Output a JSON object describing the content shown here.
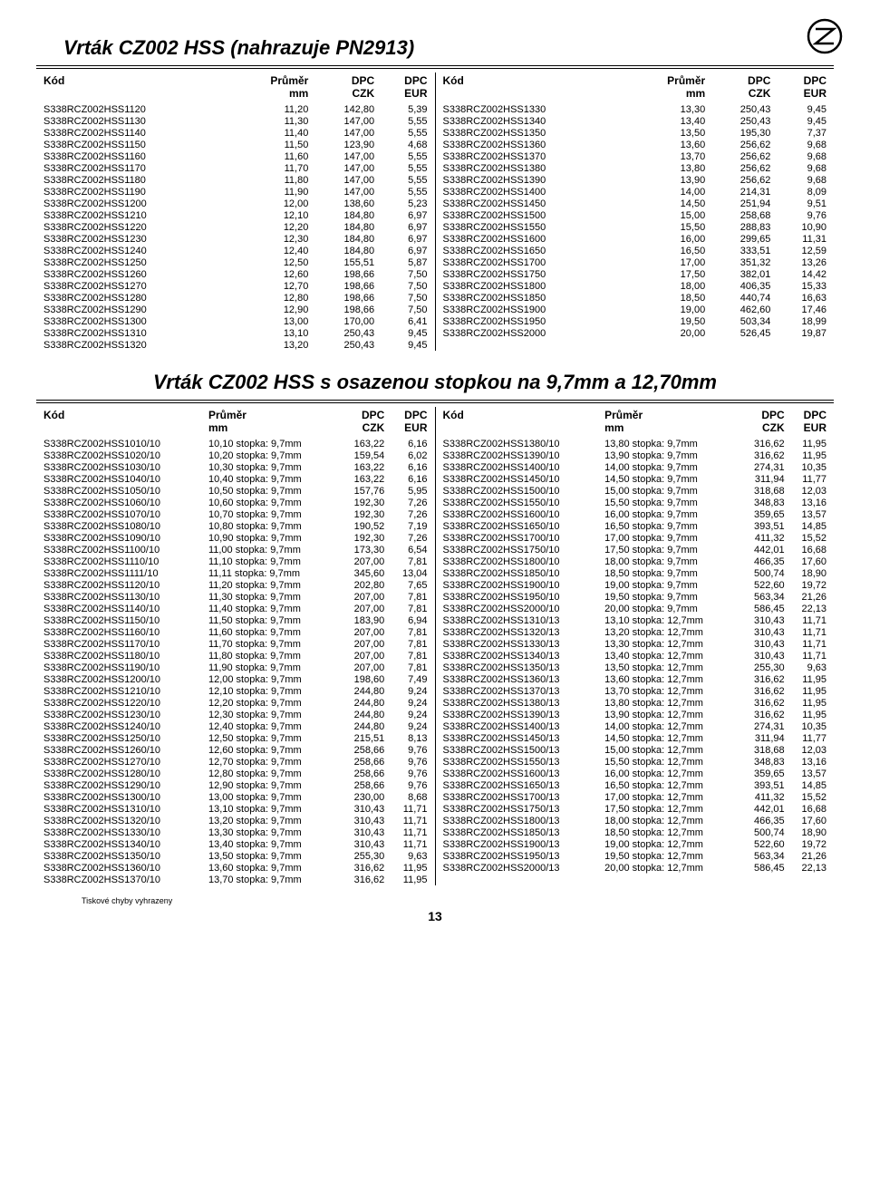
{
  "page_number": "13",
  "footnote": "Tiskové chyby vyhrazeny",
  "section1": {
    "title": "Vrták CZ002 HSS (nahrazuje PN2913)",
    "headers": [
      "Kód",
      "Průměr",
      "DPC",
      "DPC"
    ],
    "subheaders": [
      "",
      "mm",
      "CZK",
      "EUR"
    ],
    "left": [
      [
        "S338RCZ002HSS1120",
        "11,20",
        "142,80",
        "5,39"
      ],
      [
        "S338RCZ002HSS1130",
        "11,30",
        "147,00",
        "5,55"
      ],
      [
        "S338RCZ002HSS1140",
        "11,40",
        "147,00",
        "5,55"
      ],
      [
        "S338RCZ002HSS1150",
        "11,50",
        "123,90",
        "4,68"
      ],
      [
        "S338RCZ002HSS1160",
        "11,60",
        "147,00",
        "5,55"
      ],
      [
        "S338RCZ002HSS1170",
        "11,70",
        "147,00",
        "5,55"
      ],
      [
        "S338RCZ002HSS1180",
        "11,80",
        "147,00",
        "5,55"
      ],
      [
        "S338RCZ002HSS1190",
        "11,90",
        "147,00",
        "5,55"
      ],
      [
        "S338RCZ002HSS1200",
        "12,00",
        "138,60",
        "5,23"
      ],
      [
        "S338RCZ002HSS1210",
        "12,10",
        "184,80",
        "6,97"
      ],
      [
        "S338RCZ002HSS1220",
        "12,20",
        "184,80",
        "6,97"
      ],
      [
        "S338RCZ002HSS1230",
        "12,30",
        "184,80",
        "6,97"
      ],
      [
        "S338RCZ002HSS1240",
        "12,40",
        "184,80",
        "6,97"
      ],
      [
        "S338RCZ002HSS1250",
        "12,50",
        "155,51",
        "5,87"
      ],
      [
        "S338RCZ002HSS1260",
        "12,60",
        "198,66",
        "7,50"
      ],
      [
        "S338RCZ002HSS1270",
        "12,70",
        "198,66",
        "7,50"
      ],
      [
        "S338RCZ002HSS1280",
        "12,80",
        "198,66",
        "7,50"
      ],
      [
        "S338RCZ002HSS1290",
        "12,90",
        "198,66",
        "7,50"
      ],
      [
        "S338RCZ002HSS1300",
        "13,00",
        "170,00",
        "6,41"
      ],
      [
        "S338RCZ002HSS1310",
        "13,10",
        "250,43",
        "9,45"
      ],
      [
        "S338RCZ002HSS1320",
        "13,20",
        "250,43",
        "9,45"
      ]
    ],
    "right": [
      [
        "S338RCZ002HSS1330",
        "13,30",
        "250,43",
        "9,45"
      ],
      [
        "S338RCZ002HSS1340",
        "13,40",
        "250,43",
        "9,45"
      ],
      [
        "S338RCZ002HSS1350",
        "13,50",
        "195,30",
        "7,37"
      ],
      [
        "S338RCZ002HSS1360",
        "13,60",
        "256,62",
        "9,68"
      ],
      [
        "S338RCZ002HSS1370",
        "13,70",
        "256,62",
        "9,68"
      ],
      [
        "S338RCZ002HSS1380",
        "13,80",
        "256,62",
        "9,68"
      ],
      [
        "S338RCZ002HSS1390",
        "13,90",
        "256,62",
        "9,68"
      ],
      [
        "S338RCZ002HSS1400",
        "14,00",
        "214,31",
        "8,09"
      ],
      [
        "S338RCZ002HSS1450",
        "14,50",
        "251,94",
        "9,51"
      ],
      [
        "S338RCZ002HSS1500",
        "15,00",
        "258,68",
        "9,76"
      ],
      [
        "S338RCZ002HSS1550",
        "15,50",
        "288,83",
        "10,90"
      ],
      [
        "S338RCZ002HSS1600",
        "16,00",
        "299,65",
        "11,31"
      ],
      [
        "S338RCZ002HSS1650",
        "16,50",
        "333,51",
        "12,59"
      ],
      [
        "S338RCZ002HSS1700",
        "17,00",
        "351,32",
        "13,26"
      ],
      [
        "S338RCZ002HSS1750",
        "17,50",
        "382,01",
        "14,42"
      ],
      [
        "S338RCZ002HSS1800",
        "18,00",
        "406,35",
        "15,33"
      ],
      [
        "S338RCZ002HSS1850",
        "18,50",
        "440,74",
        "16,63"
      ],
      [
        "S338RCZ002HSS1900",
        "19,00",
        "462,60",
        "17,46"
      ],
      [
        "S338RCZ002HSS1950",
        "19,50",
        "503,34",
        "18,99"
      ],
      [
        "S338RCZ002HSS2000",
        "20,00",
        "526,45",
        "19,87"
      ]
    ]
  },
  "section2": {
    "title": "Vrták CZ002 HSS s osazenou stopkou na 9,7mm a 12,70mm",
    "headers": [
      "Kód",
      "Průměr",
      "DPC",
      "DPC"
    ],
    "subheaders": [
      "",
      "mm",
      "CZK",
      "EUR"
    ],
    "left": [
      [
        "S338RCZ002HSS1010/10",
        "10,10 stopka:  9,7mm",
        "163,22",
        "6,16"
      ],
      [
        "S338RCZ002HSS1020/10",
        "10,20 stopka:  9,7mm",
        "159,54",
        "6,02"
      ],
      [
        "S338RCZ002HSS1030/10",
        "10,30 stopka:  9,7mm",
        "163,22",
        "6,16"
      ],
      [
        "S338RCZ002HSS1040/10",
        "10,40 stopka:  9,7mm",
        "163,22",
        "6,16"
      ],
      [
        "S338RCZ002HSS1050/10",
        "10,50 stopka:  9,7mm",
        "157,76",
        "5,95"
      ],
      [
        "S338RCZ002HSS1060/10",
        "10,60 stopka:  9,7mm",
        "192,30",
        "7,26"
      ],
      [
        "S338RCZ002HSS1070/10",
        "10,70 stopka:  9,7mm",
        "192,30",
        "7,26"
      ],
      [
        "S338RCZ002HSS1080/10",
        "10,80 stopka:  9,7mm",
        "190,52",
        "7,19"
      ],
      [
        "S338RCZ002HSS1090/10",
        "10,90 stopka:  9,7mm",
        "192,30",
        "7,26"
      ],
      [
        "S338RCZ002HSS1100/10",
        "11,00 stopka:  9,7mm",
        "173,30",
        "6,54"
      ],
      [
        "S338RCZ002HSS1110/10",
        "11,10 stopka:  9,7mm",
        "207,00",
        "7,81"
      ],
      [
        "S338RCZ002HSS1111/10",
        "11,11 stopka:  9,7mm",
        "345,60",
        "13,04"
      ],
      [
        "S338RCZ002HSS1120/10",
        "11,20 stopka:  9,7mm",
        "202,80",
        "7,65"
      ],
      [
        "S338RCZ002HSS1130/10",
        "11,30 stopka:  9,7mm",
        "207,00",
        "7,81"
      ],
      [
        "S338RCZ002HSS1140/10",
        "11,40 stopka:  9,7mm",
        "207,00",
        "7,81"
      ],
      [
        "S338RCZ002HSS1150/10",
        "11,50 stopka:  9,7mm",
        "183,90",
        "6,94"
      ],
      [
        "S338RCZ002HSS1160/10",
        "11,60 stopka:  9,7mm",
        "207,00",
        "7,81"
      ],
      [
        "S338RCZ002HSS1170/10",
        "11,70 stopka:  9,7mm",
        "207,00",
        "7,81"
      ],
      [
        "S338RCZ002HSS1180/10",
        "11,80 stopka:  9,7mm",
        "207,00",
        "7,81"
      ],
      [
        "S338RCZ002HSS1190/10",
        "11,90 stopka:  9,7mm",
        "207,00",
        "7,81"
      ],
      [
        "S338RCZ002HSS1200/10",
        "12,00 stopka:  9,7mm",
        "198,60",
        "7,49"
      ],
      [
        "S338RCZ002HSS1210/10",
        "12,10 stopka:  9,7mm",
        "244,80",
        "9,24"
      ],
      [
        "S338RCZ002HSS1220/10",
        "12,20 stopka:  9,7mm",
        "244,80",
        "9,24"
      ],
      [
        "S338RCZ002HSS1230/10",
        "12,30 stopka:  9,7mm",
        "244,80",
        "9,24"
      ],
      [
        "S338RCZ002HSS1240/10",
        "12,40 stopka:  9,7mm",
        "244,80",
        "9,24"
      ],
      [
        "S338RCZ002HSS1250/10",
        "12,50 stopka:  9,7mm",
        "215,51",
        "8,13"
      ],
      [
        "S338RCZ002HSS1260/10",
        "12,60 stopka:  9,7mm",
        "258,66",
        "9,76"
      ],
      [
        "S338RCZ002HSS1270/10",
        "12,70 stopka:  9,7mm",
        "258,66",
        "9,76"
      ],
      [
        "S338RCZ002HSS1280/10",
        "12,80 stopka:  9,7mm",
        "258,66",
        "9,76"
      ],
      [
        "S338RCZ002HSS1290/10",
        "12,90 stopka:  9,7mm",
        "258,66",
        "9,76"
      ],
      [
        "S338RCZ002HSS1300/10",
        "13,00 stopka:  9,7mm",
        "230,00",
        "8,68"
      ],
      [
        "S338RCZ002HSS1310/10",
        "13,10 stopka:  9,7mm",
        "310,43",
        "11,71"
      ],
      [
        "S338RCZ002HSS1320/10",
        "13,20 stopka:  9,7mm",
        "310,43",
        "11,71"
      ],
      [
        "S338RCZ002HSS1330/10",
        "13,30 stopka:  9,7mm",
        "310,43",
        "11,71"
      ],
      [
        "S338RCZ002HSS1340/10",
        "13,40 stopka:  9,7mm",
        "310,43",
        "11,71"
      ],
      [
        "S338RCZ002HSS1350/10",
        "13,50 stopka:  9,7mm",
        "255,30",
        "9,63"
      ],
      [
        "S338RCZ002HSS1360/10",
        "13,60 stopka:  9,7mm",
        "316,62",
        "11,95"
      ],
      [
        "S338RCZ002HSS1370/10",
        "13,70 stopka:  9,7mm",
        "316,62",
        "11,95"
      ]
    ],
    "right": [
      [
        "S338RCZ002HSS1380/10",
        "13,80 stopka:  9,7mm",
        "316,62",
        "11,95"
      ],
      [
        "S338RCZ002HSS1390/10",
        "13,90 stopka:  9,7mm",
        "316,62",
        "11,95"
      ],
      [
        "S338RCZ002HSS1400/10",
        "14,00 stopka:  9,7mm",
        "274,31",
        "10,35"
      ],
      [
        "S338RCZ002HSS1450/10",
        "14,50 stopka:  9,7mm",
        "311,94",
        "11,77"
      ],
      [
        "S338RCZ002HSS1500/10",
        "15,00 stopka:  9,7mm",
        "318,68",
        "12,03"
      ],
      [
        "S338RCZ002HSS1550/10",
        "15,50 stopka:  9,7mm",
        "348,83",
        "13,16"
      ],
      [
        "S338RCZ002HSS1600/10",
        "16,00 stopka:  9,7mm",
        "359,65",
        "13,57"
      ],
      [
        "S338RCZ002HSS1650/10",
        "16,50 stopka:  9,7mm",
        "393,51",
        "14,85"
      ],
      [
        "S338RCZ002HSS1700/10",
        "17,00 stopka:  9,7mm",
        "411,32",
        "15,52"
      ],
      [
        "S338RCZ002HSS1750/10",
        "17,50 stopka:  9,7mm",
        "442,01",
        "16,68"
      ],
      [
        "S338RCZ002HSS1800/10",
        "18,00 stopka:  9,7mm",
        "466,35",
        "17,60"
      ],
      [
        "S338RCZ002HSS1850/10",
        "18,50 stopka:  9,7mm",
        "500,74",
        "18,90"
      ],
      [
        "S338RCZ002HSS1900/10",
        "19,00 stopka:  9,7mm",
        "522,60",
        "19,72"
      ],
      [
        "S338RCZ002HSS1950/10",
        "19,50 stopka:  9,7mm",
        "563,34",
        "21,26"
      ],
      [
        "S338RCZ002HSS2000/10",
        "20,00 stopka:  9,7mm",
        "586,45",
        "22,13"
      ],
      [
        "S338RCZ002HSS1310/13",
        "13,10 stopka: 12,7mm",
        "310,43",
        "11,71"
      ],
      [
        "S338RCZ002HSS1320/13",
        "13,20 stopka: 12,7mm",
        "310,43",
        "11,71"
      ],
      [
        "S338RCZ002HSS1330/13",
        "13,30 stopka: 12,7mm",
        "310,43",
        "11,71"
      ],
      [
        "S338RCZ002HSS1340/13",
        "13,40 stopka: 12,7mm",
        "310,43",
        "11,71"
      ],
      [
        "S338RCZ002HSS1350/13",
        "13,50 stopka: 12,7mm",
        "255,30",
        "9,63"
      ],
      [
        "S338RCZ002HSS1360/13",
        "13,60 stopka: 12,7mm",
        "316,62",
        "11,95"
      ],
      [
        "S338RCZ002HSS1370/13",
        "13,70 stopka: 12,7mm",
        "316,62",
        "11,95"
      ],
      [
        "S338RCZ002HSS1380/13",
        "13,80 stopka: 12,7mm",
        "316,62",
        "11,95"
      ],
      [
        "S338RCZ002HSS1390/13",
        "13,90 stopka: 12,7mm",
        "316,62",
        "11,95"
      ],
      [
        "S338RCZ002HSS1400/13",
        "14,00 stopka: 12,7mm",
        "274,31",
        "10,35"
      ],
      [
        "S338RCZ002HSS1450/13",
        "14,50 stopka: 12,7mm",
        "311,94",
        "11,77"
      ],
      [
        "S338RCZ002HSS1500/13",
        "15,00 stopka: 12,7mm",
        "318,68",
        "12,03"
      ],
      [
        "S338RCZ002HSS1550/13",
        "15,50 stopka: 12,7mm",
        "348,83",
        "13,16"
      ],
      [
        "S338RCZ002HSS1600/13",
        "16,00 stopka: 12,7mm",
        "359,65",
        "13,57"
      ],
      [
        "S338RCZ002HSS1650/13",
        "16,50 stopka: 12,7mm",
        "393,51",
        "14,85"
      ],
      [
        "S338RCZ002HSS1700/13",
        "17,00 stopka: 12,7mm",
        "411,32",
        "15,52"
      ],
      [
        "S338RCZ002HSS1750/13",
        "17,50 stopka: 12,7mm",
        "442,01",
        "16,68"
      ],
      [
        "S338RCZ002HSS1800/13",
        "18,00 stopka: 12,7mm",
        "466,35",
        "17,60"
      ],
      [
        "S338RCZ002HSS1850/13",
        "18,50 stopka: 12,7mm",
        "500,74",
        "18,90"
      ],
      [
        "S338RCZ002HSS1900/13",
        "19,00 stopka: 12,7mm",
        "522,60",
        "19,72"
      ],
      [
        "S338RCZ002HSS1950/13",
        "19,50 stopka: 12,7mm",
        "563,34",
        "21,26"
      ],
      [
        "S338RCZ002HSS2000/13",
        "20,00 stopka: 12,7mm",
        "586,45",
        "22,13"
      ]
    ]
  }
}
